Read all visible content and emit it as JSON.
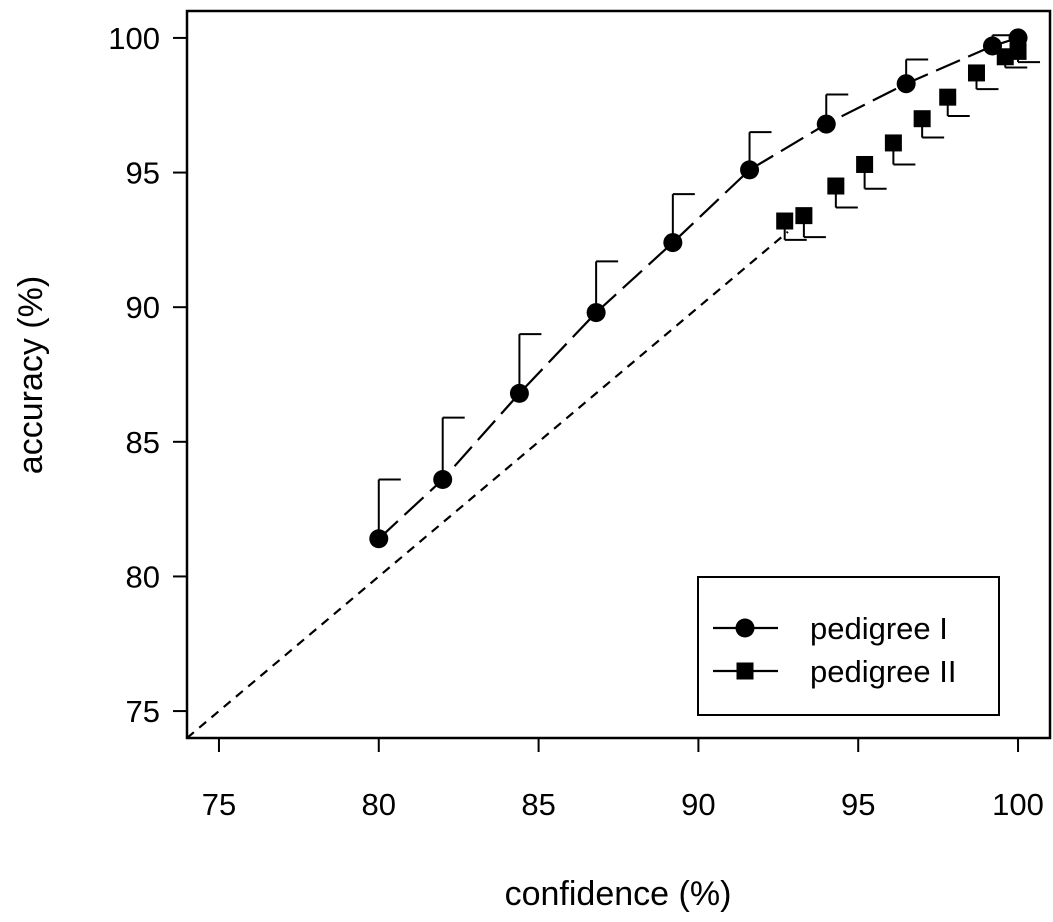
{
  "chart_data": {
    "type": "line",
    "xlabel": "confidence (%)",
    "ylabel": "accuracy (%)",
    "xlim": [
      74,
      101
    ],
    "ylim": [
      74,
      101
    ],
    "xticks": [
      75,
      80,
      85,
      90,
      95,
      100
    ],
    "yticks": [
      75,
      80,
      85,
      90,
      95,
      100
    ],
    "reference_line": "y = x (dashed)",
    "legend_position": "bottom-right",
    "series": [
      {
        "name": "pedigree I",
        "marker": "circle",
        "line": "long-dash",
        "x": [
          80.0,
          82.0,
          84.4,
          86.8,
          89.2,
          91.6,
          94.0,
          96.5,
          99.2,
          100.0
        ],
        "y": [
          81.4,
          83.6,
          86.8,
          89.8,
          92.4,
          95.1,
          96.8,
          98.3,
          99.7,
          100.0
        ],
        "error_upper": [
          83.6,
          85.9,
          89.0,
          91.7,
          94.2,
          96.5,
          97.9,
          99.2,
          100.1,
          null
        ]
      },
      {
        "name": "pedigree II",
        "marker": "square",
        "line": "none",
        "x": [
          92.7,
          93.3,
          94.3,
          95.2,
          96.1,
          97.0,
          97.8,
          98.7,
          99.6,
          100.0
        ],
        "y": [
          93.2,
          93.4,
          94.5,
          95.3,
          96.1,
          97.0,
          97.8,
          98.7,
          99.3,
          99.5
        ],
        "error_lower": [
          92.5,
          92.6,
          93.7,
          94.4,
          95.3,
          96.3,
          97.1,
          98.1,
          98.9,
          99.1
        ]
      }
    ]
  }
}
